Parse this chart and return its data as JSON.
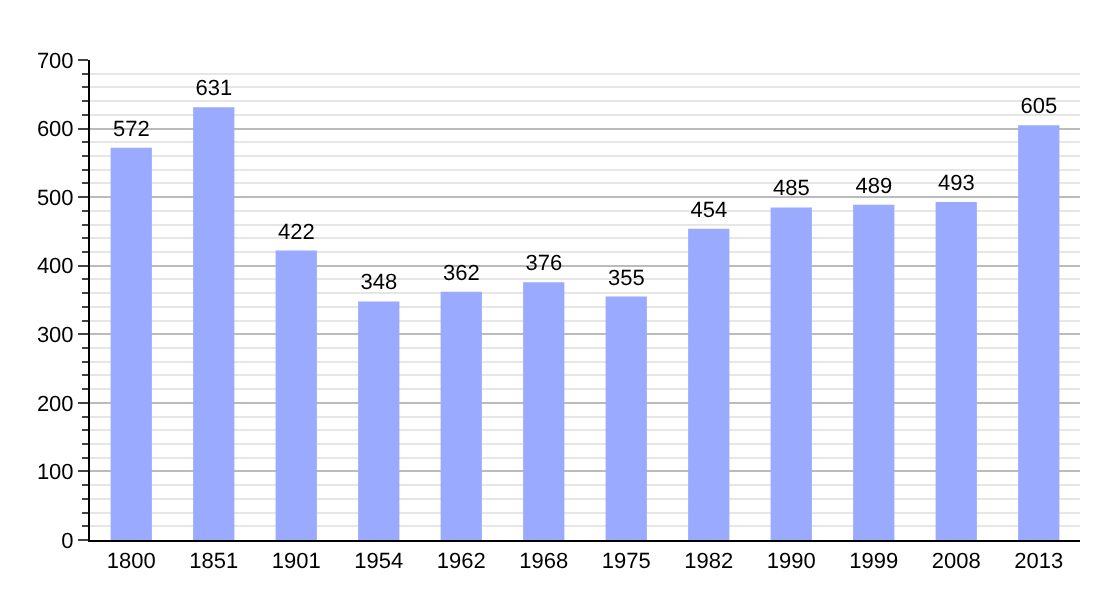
{
  "chart_data": {
    "type": "bar",
    "categories": [
      "1800",
      "1851",
      "1901",
      "1954",
      "1962",
      "1968",
      "1975",
      "1982",
      "1990",
      "1999",
      "2008",
      "2013"
    ],
    "values": [
      572,
      631,
      422,
      348,
      362,
      376,
      355,
      454,
      485,
      489,
      493,
      605
    ],
    "color": "#99aaff",
    "data_labels": true,
    "grid": "y",
    "ylim": [
      0,
      700
    ],
    "yticks": [
      0,
      {
        "value": 20,
        "label": null
      },
      {
        "value": 40,
        "label": null
      },
      {
        "value": 60,
        "label": null
      },
      {
        "value": 80,
        "label": null
      },
      100,
      {
        "value": 120,
        "label": null
      },
      {
        "value": 140,
        "label": null
      },
      {
        "value": 160,
        "label": null
      },
      {
        "value": 180,
        "label": null
      },
      200,
      {
        "value": 220,
        "label": null
      },
      {
        "value": 240,
        "label": null
      },
      {
        "value": 260,
        "label": null
      },
      {
        "value": 280,
        "label": null
      },
      300,
      {
        "value": 320,
        "label": null
      },
      {
        "value": 340,
        "label": null
      },
      {
        "value": 360,
        "label": null
      },
      {
        "value": 380,
        "label": null
      },
      400,
      {
        "value": 420,
        "label": null
      },
      {
        "value": 440,
        "label": null
      },
      {
        "value": 460,
        "label": null
      },
      {
        "value": 480,
        "label": null
      },
      500,
      {
        "value": 520,
        "label": null
      },
      {
        "value": 540,
        "label": null
      },
      {
        "value": 560,
        "label": null
      },
      {
        "value": 580,
        "label": null
      },
      600,
      {
        "value": 620,
        "label": null
      },
      {
        "value": 640,
        "label": null
      },
      {
        "value": 660,
        "label": null
      },
      {
        "value": 680,
        "label": null
      },
      700
    ]
  }
}
